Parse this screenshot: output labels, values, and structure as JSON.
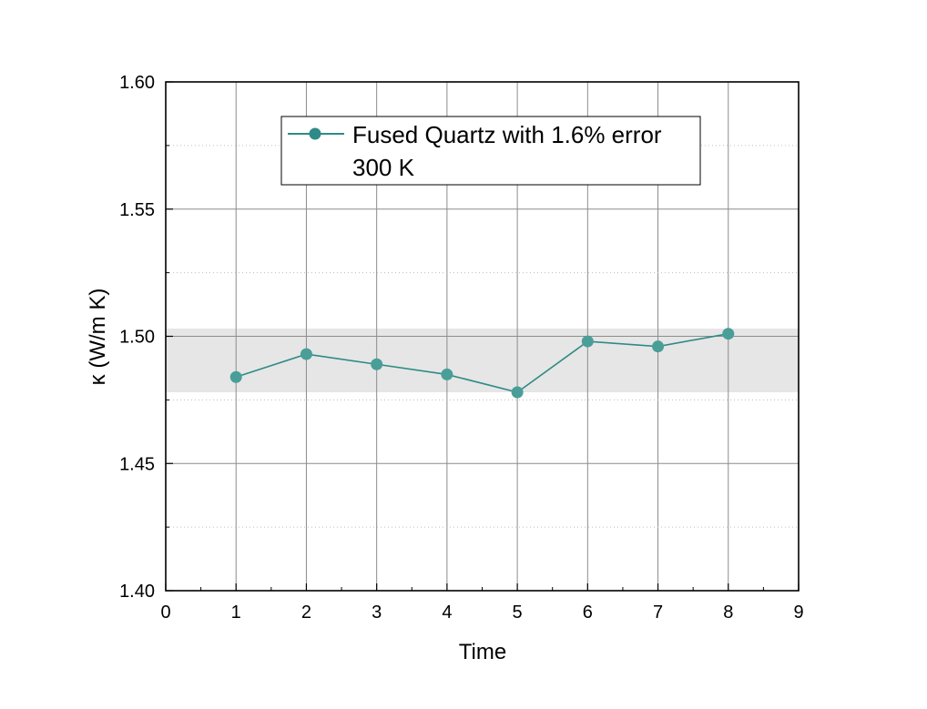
{
  "chart_data": {
    "type": "line",
    "xlabel": "Time",
    "ylabel": "κ (W/m K)",
    "xlim": [
      0,
      9
    ],
    "ylim": [
      1.4,
      1.6
    ],
    "x_ticks": [
      "0",
      "1",
      "2",
      "3",
      "4",
      "5",
      "6",
      "7",
      "8",
      "9"
    ],
    "y_ticks": [
      "1.40",
      "1.45",
      "1.50",
      "1.55",
      "1.60"
    ],
    "grid": true,
    "legend_placement": "top-center",
    "error_band": {
      "low": 1.478,
      "high": 1.503,
      "color": "#e6e6e6"
    },
    "series": [
      {
        "name": "Fused Quartz with 1.6% error",
        "color": "#2e8b86",
        "marker_color": "#4a9e98",
        "x": [
          1,
          2,
          3,
          4,
          5,
          6,
          7,
          8
        ],
        "y": [
          1.484,
          1.493,
          1.489,
          1.485,
          1.478,
          1.498,
          1.496,
          1.501
        ]
      }
    ],
    "legend": {
      "line1": "Fused Quartz with 1.6% error",
      "line2": "300 K"
    }
  }
}
